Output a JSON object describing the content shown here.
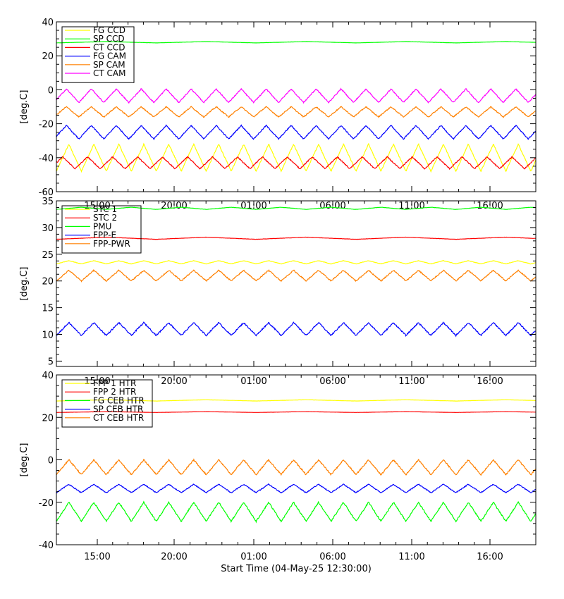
{
  "x_axis": {
    "start_time_label": "Start Time (04-May-25 12:30:00)",
    "tick_labels": [
      "15:00",
      "20:00",
      "01:00",
      "06:00",
      "11:00",
      "16:00"
    ]
  },
  "chart_data": [
    {
      "type": "line",
      "panel": "top",
      "ylabel": "[deg.C]",
      "ylim": [
        -60,
        40
      ],
      "yticks": [
        -60,
        -40,
        -20,
        0,
        20,
        40
      ],
      "grid": false,
      "legend_position": "top-left",
      "series": [
        {
          "name": "FG CCD",
          "color": "#ffff00",
          "base": -40,
          "amp": 8,
          "period": 1.25,
          "phase": 0.0
        },
        {
          "name": "SP CCD",
          "color": "#00ff00",
          "base": 28,
          "amp": 0.4,
          "period": 5,
          "phase": 0.0
        },
        {
          "name": "CT CCD",
          "color": "#ff0000",
          "base": -43,
          "amp": 3.5,
          "period": 1.25,
          "phase": 0.25
        },
        {
          "name": "FG CAM",
          "color": "#0000ff",
          "base": -25,
          "amp": 4,
          "period": 1.25,
          "phase": 0.1
        },
        {
          "name": "SP CAM",
          "color": "#ff8000",
          "base": -13,
          "amp": 3,
          "period": 1.25,
          "phase": 0.1
        },
        {
          "name": "CT CAM",
          "color": "#ff00ff",
          "base": -3.5,
          "amp": 4,
          "period": 1.25,
          "phase": 0.1
        }
      ]
    },
    {
      "type": "line",
      "panel": "middle",
      "ylabel": "[deg.C]",
      "ylim": [
        4,
        35
      ],
      "yticks": [
        5,
        10,
        15,
        20,
        25,
        30,
        35
      ],
      "grid": false,
      "legend_position": "top-left",
      "series": [
        {
          "name": "STC 1",
          "color": "#ffff00",
          "base": 23.5,
          "amp": 0.3,
          "period": 1.25,
          "phase": 0.0
        },
        {
          "name": "STC 2",
          "color": "#ff0000",
          "base": 28,
          "amp": 0.2,
          "period": 5,
          "phase": 0.0
        },
        {
          "name": "PMU",
          "color": "#00ff00",
          "base": 33.6,
          "amp": 0.2,
          "period": 2.5,
          "phase": 0.0
        },
        {
          "name": "FPP-E",
          "color": "#0000ff",
          "base": 11,
          "amp": 1.2,
          "period": 1.25,
          "phase": 0.0
        },
        {
          "name": "FPP-PWR",
          "color": "#ff8000",
          "base": 21,
          "amp": 1.0,
          "period": 1.25,
          "phase": 0.0
        }
      ]
    },
    {
      "type": "line",
      "panel": "bottom",
      "ylabel": "[deg.C]",
      "ylim": [
        -40,
        40
      ],
      "yticks": [
        -40,
        -20,
        0,
        20,
        40
      ],
      "grid": false,
      "legend_position": "top-left",
      "series": [
        {
          "name": "FPP 1 HTR",
          "color": "#ffff00",
          "base": 28,
          "amp": 0.3,
          "period": 5,
          "phase": 0.0
        },
        {
          "name": "FPP 2 HTR",
          "color": "#ff0000",
          "base": 22.5,
          "amp": 0.2,
          "period": 5,
          "phase": 0.0
        },
        {
          "name": "FG CEB HTR",
          "color": "#00ff00",
          "base": -24.5,
          "amp": 4.5,
          "period": 1.25,
          "phase": 0.0
        },
        {
          "name": "SP CEB HTR",
          "color": "#0000ff",
          "base": -13.5,
          "amp": 2,
          "period": 1.25,
          "phase": 0.0
        },
        {
          "name": "CT CEB HTR",
          "color": "#ff8000",
          "base": -3.5,
          "amp": 3.5,
          "period": 1.25,
          "phase": 0.0
        }
      ]
    }
  ]
}
